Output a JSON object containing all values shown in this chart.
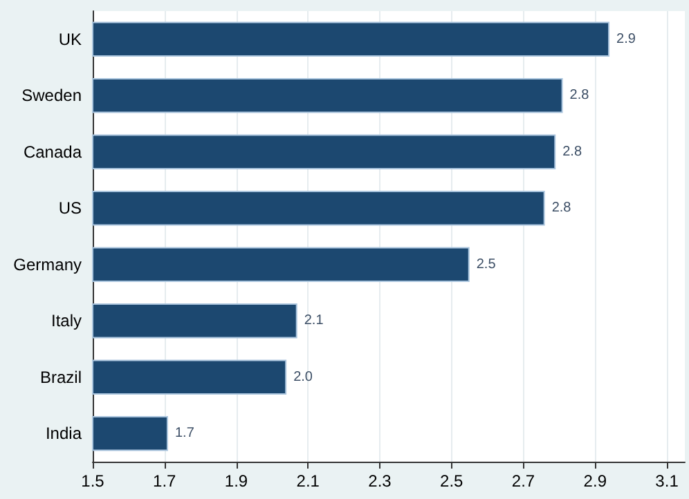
{
  "chart_data": {
    "type": "bar",
    "orientation": "horizontal",
    "categories": [
      "UK",
      "Sweden",
      "Canada",
      "US",
      "Germany",
      "Italy",
      "Brazil",
      "India"
    ],
    "values": [
      2.94,
      2.81,
      2.79,
      2.76,
      2.55,
      2.07,
      2.04,
      1.71
    ],
    "value_labels": [
      "2.9",
      "2.8",
      "2.8",
      "2.8",
      "2.5",
      "2.1",
      "2.0",
      "1.7"
    ],
    "color": "#1c4870",
    "xlim": [
      1.5,
      3.15
    ],
    "xticks": [
      1.5,
      1.7,
      1.9,
      2.1,
      2.3,
      2.5,
      2.7,
      2.9,
      3.1
    ],
    "grid": "x"
  }
}
